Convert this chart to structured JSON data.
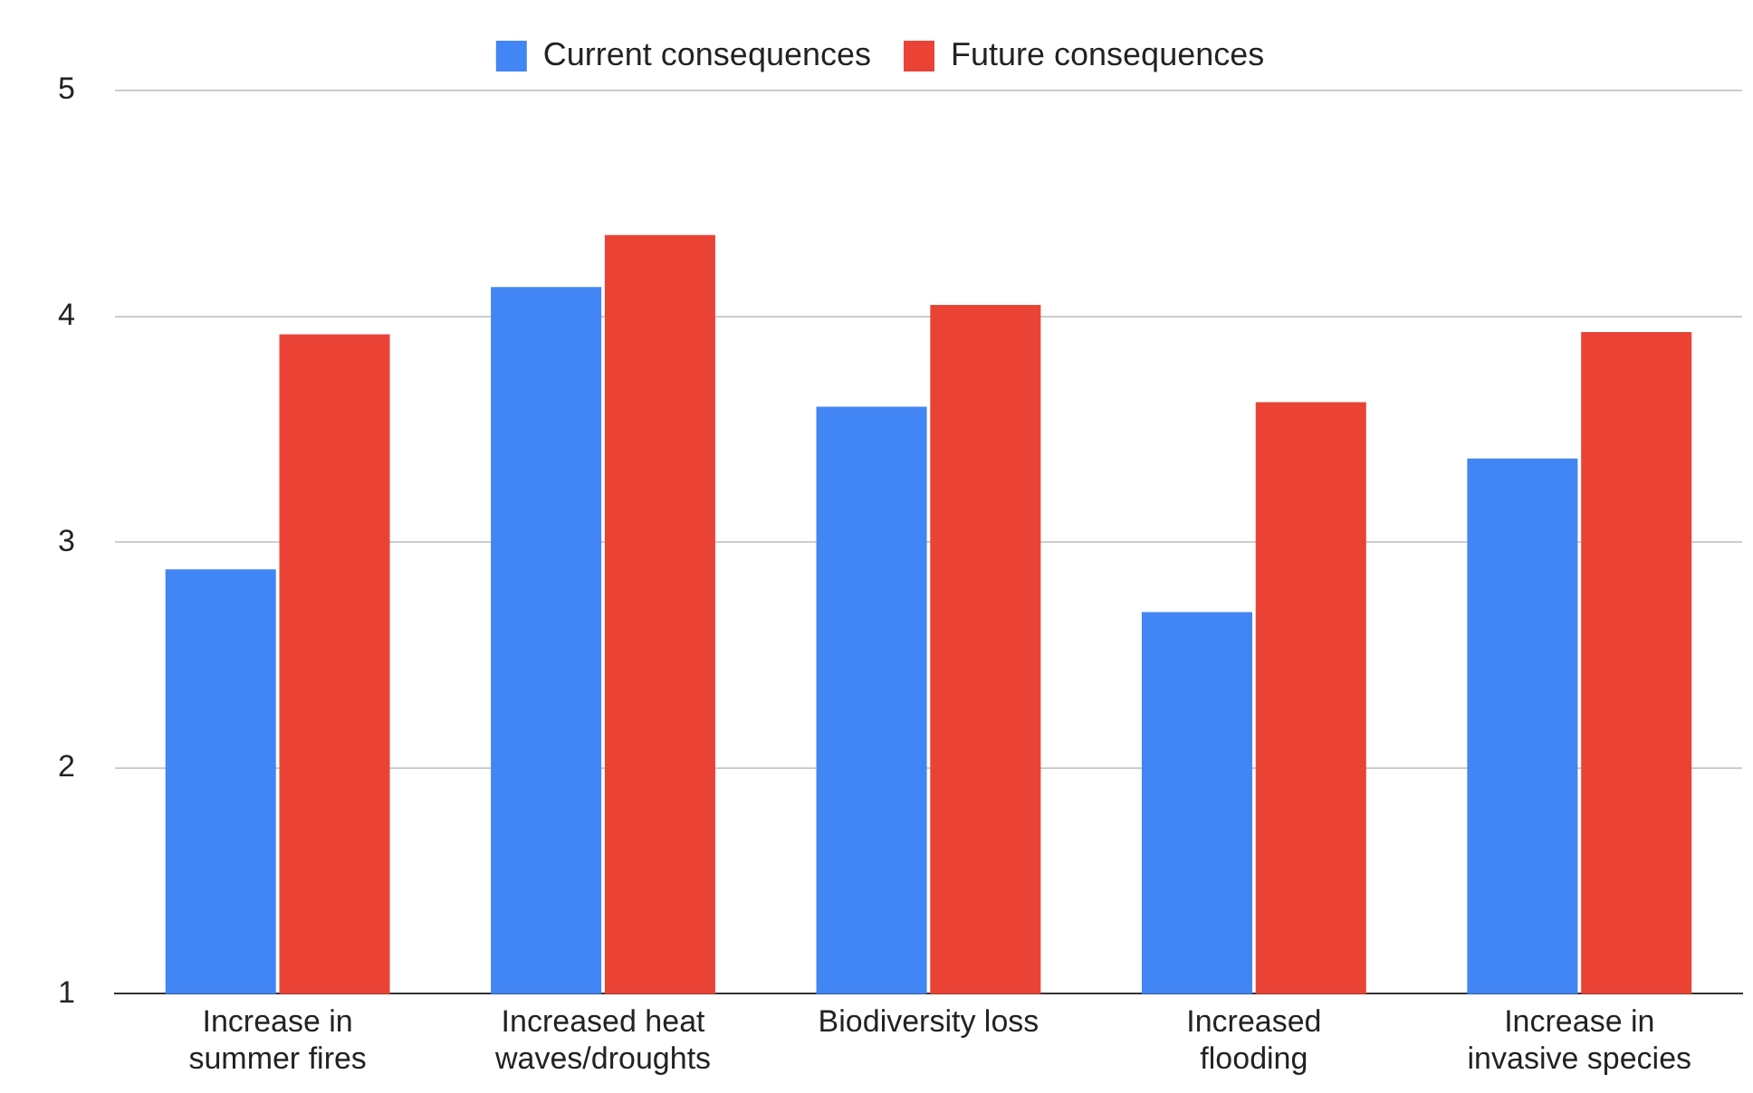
{
  "chart_data": {
    "type": "bar",
    "categories": [
      "Increase in\nsummer fires",
      "Increased heat\nwaves/droughts",
      "Biodiversity loss",
      "Increased\nflooding",
      "Increase in\ninvasive species"
    ],
    "series": [
      {
        "name": "Current consequences",
        "color": "#4285f4",
        "values": [
          2.88,
          4.13,
          3.6,
          2.69,
          3.37
        ]
      },
      {
        "name": "Future consequences",
        "color": "#ea4335",
        "values": [
          3.92,
          4.36,
          4.05,
          3.62,
          3.93
        ]
      }
    ],
    "ylim": [
      1,
      5
    ],
    "yticks": [
      1,
      2,
      3,
      4,
      5
    ],
    "grid": "y",
    "legend": "top"
  }
}
